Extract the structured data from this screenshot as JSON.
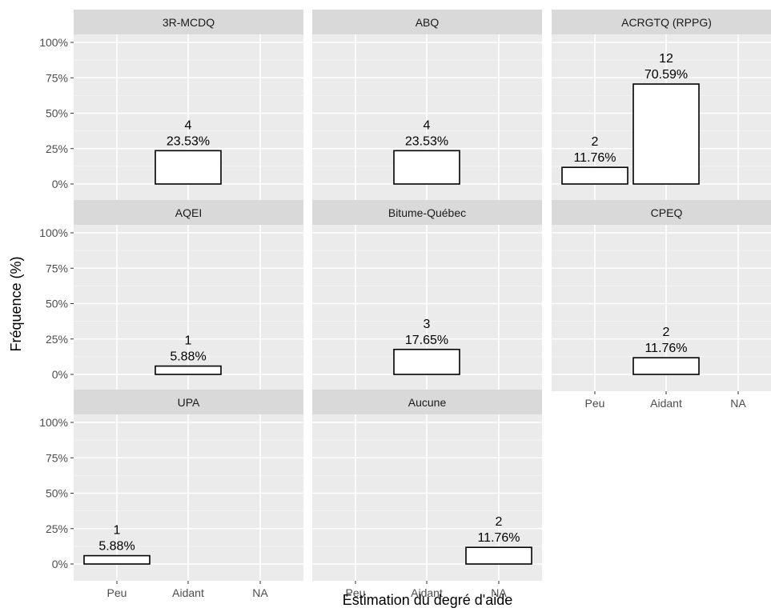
{
  "chart_data": {
    "type": "bar",
    "xlabel": "Estimation du degré d'aide",
    "ylabel": "Fréquence (%)",
    "categories": [
      "Peu",
      "Aidant",
      "NA"
    ],
    "ylim": [
      0,
      100
    ],
    "y_ticks": [
      "0%",
      "25%",
      "50%",
      "75%",
      "100%"
    ],
    "grid": true,
    "facets": [
      {
        "title": "3R-MCDQ",
        "bars": [
          {
            "category": "Aidant",
            "count": "4",
            "value": 23.53,
            "label": "23.53%"
          }
        ]
      },
      {
        "title": "ABQ",
        "bars": [
          {
            "category": "Aidant",
            "count": "4",
            "value": 23.53,
            "label": "23.53%"
          }
        ]
      },
      {
        "title": "ACRGTQ (RPPG)",
        "bars": [
          {
            "category": "Peu",
            "count": "2",
            "value": 11.76,
            "label": "11.76%"
          },
          {
            "category": "Aidant",
            "count": "12",
            "value": 70.59,
            "label": "70.59%"
          }
        ]
      },
      {
        "title": "AQEI",
        "bars": [
          {
            "category": "Aidant",
            "count": "1",
            "value": 5.88,
            "label": "5.88%"
          }
        ]
      },
      {
        "title": "Bitume-Québec",
        "bars": [
          {
            "category": "Aidant",
            "count": "3",
            "value": 17.65,
            "label": "17.65%"
          }
        ]
      },
      {
        "title": "CPEQ",
        "bars": [
          {
            "category": "Aidant",
            "count": "2",
            "value": 11.76,
            "label": "11.76%"
          }
        ]
      },
      {
        "title": "UPA",
        "bars": [
          {
            "category": "Peu",
            "count": "1",
            "value": 5.88,
            "label": "5.88%"
          }
        ]
      },
      {
        "title": "Aucune",
        "bars": [
          {
            "category": "NA",
            "count": "2",
            "value": 11.76,
            "label": "11.76%"
          }
        ]
      }
    ]
  }
}
